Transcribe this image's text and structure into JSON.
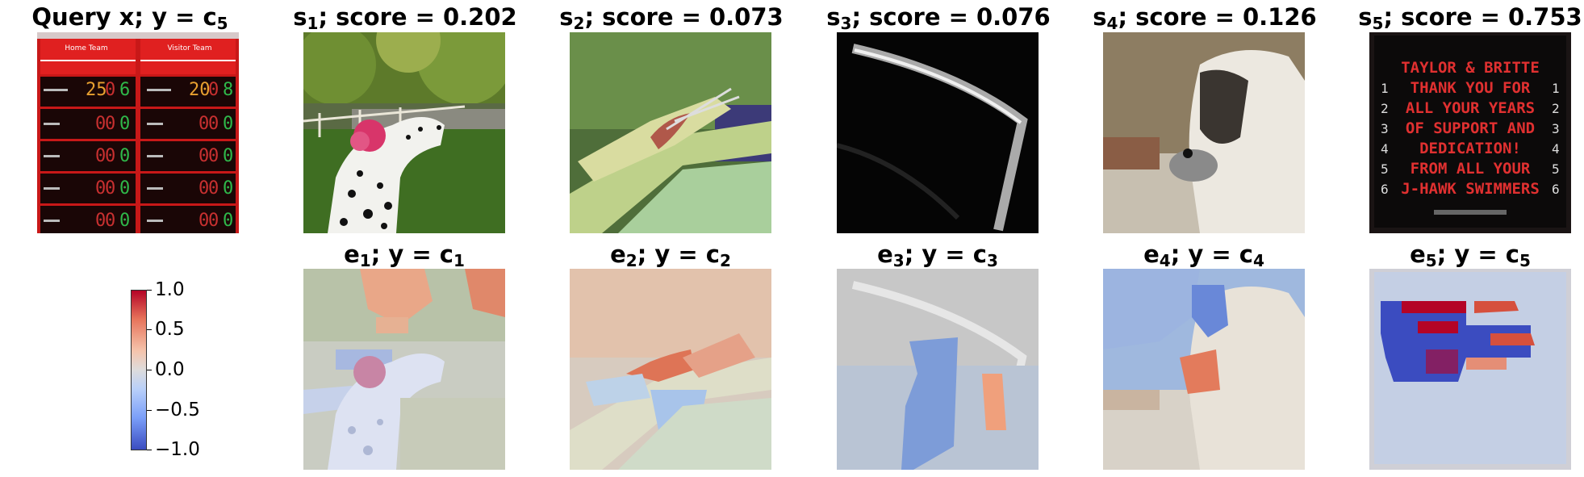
{
  "top_row": {
    "query": {
      "label": "Query x; y = ",
      "sub_label": "c",
      "sub_index": "5"
    },
    "samples": [
      {
        "letter": "s",
        "index": "1",
        "text": "; score = 0.202"
      },
      {
        "letter": "s",
        "index": "2",
        "text": "; score = 0.073"
      },
      {
        "letter": "s",
        "index": "3",
        "text": "; score = 0.076"
      },
      {
        "letter": "s",
        "index": "4",
        "text": "; score = 0.126"
      },
      {
        "letter": "s",
        "index": "5",
        "text": "; score = 0.753"
      }
    ]
  },
  "bottom_row": {
    "explanations": [
      {
        "letter": "e",
        "index": "1",
        "mid": "; y = ",
        "cls": "c",
        "cls_index": "1"
      },
      {
        "letter": "e",
        "index": "2",
        "mid": "; y = ",
        "cls": "c",
        "cls_index": "2"
      },
      {
        "letter": "e",
        "index": "3",
        "mid": "; y = ",
        "cls": "c",
        "cls_index": "3"
      },
      {
        "letter": "e",
        "index": "4",
        "mid": "; y = ",
        "cls": "c",
        "cls_index": "4"
      },
      {
        "letter": "e",
        "index": "5",
        "mid": "; y = ",
        "cls": "c",
        "cls_index": "5"
      }
    ]
  },
  "scoreboard": {
    "home": "Home Team",
    "visitor": "Visitor Team",
    "sign_lines": [
      "TAYLOR & BRITTE",
      "THANK YOU FOR",
      "ALL YOUR YEARS",
      "OF SUPPORT AND",
      "DEDICATION!",
      "FROM ALL YOUR",
      "J-HAWK SWIMMERS"
    ]
  },
  "colorbar": {
    "ticks": [
      "1.0",
      "0.5",
      "0.0",
      "−0.5",
      "−1.0"
    ],
    "colormap": [
      "#b40426",
      "#dddcdc",
      "#3b4cc0"
    ]
  }
}
